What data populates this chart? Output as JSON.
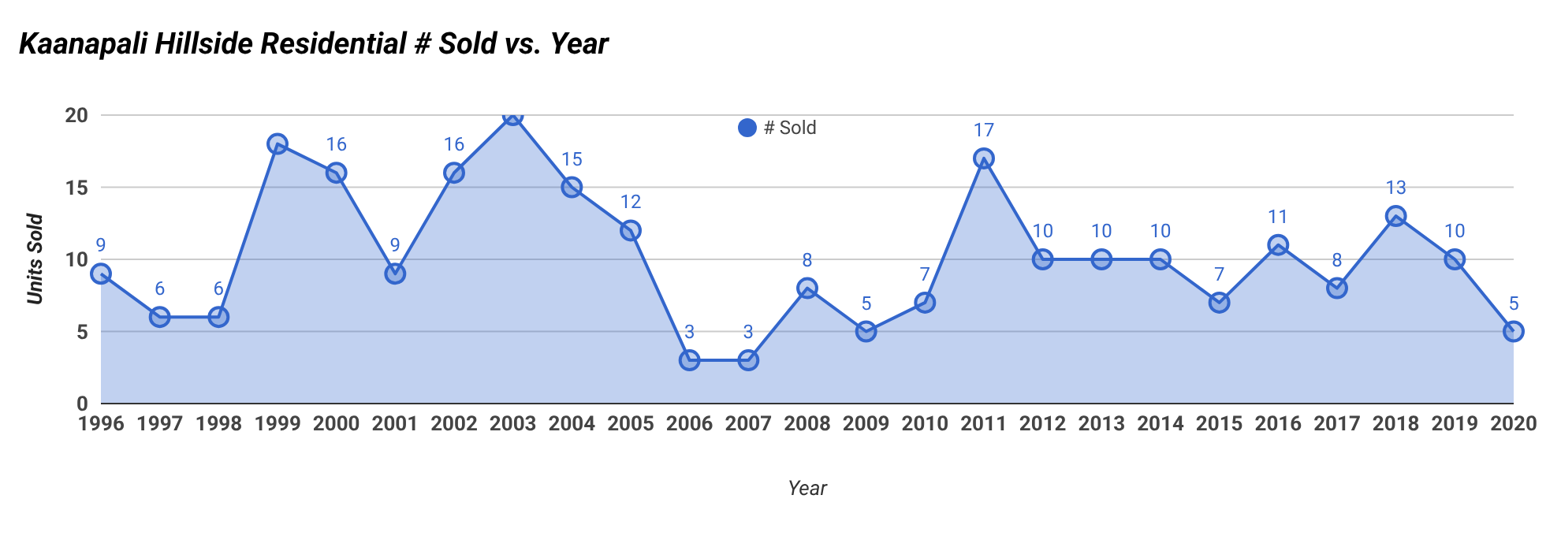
{
  "chart_data": {
    "type": "area",
    "title": "Kaanapali Hillside Residential # Sold vs. Year",
    "xlabel": "Year",
    "ylabel": "Units Sold",
    "categories": [
      "1996",
      "1997",
      "1998",
      "1999",
      "2000",
      "2001",
      "2002",
      "2003",
      "2004",
      "2005",
      "2006",
      "2007",
      "2008",
      "2009",
      "2010",
      "2011",
      "2012",
      "2013",
      "2014",
      "2015",
      "2016",
      "2017",
      "2018",
      "2019",
      "2020"
    ],
    "series": [
      {
        "name": "# Sold",
        "color": "#3366cc",
        "values": [
          9,
          6,
          6,
          18,
          16,
          9,
          16,
          20,
          15,
          12,
          3,
          3,
          8,
          5,
          7,
          17,
          10,
          10,
          10,
          7,
          11,
          8,
          13,
          10,
          5
        ],
        "value_labels": [
          "9",
          "6",
          "6",
          null,
          "16",
          "9",
          "16",
          null,
          "15",
          "12",
          "3",
          "3",
          "8",
          "5",
          "7",
          "17",
          "10",
          "10",
          "10",
          "7",
          "11",
          "8",
          "13",
          "10",
          "5"
        ]
      }
    ],
    "ylim": [
      0,
      20
    ],
    "yticks": [
      0,
      5,
      10,
      15,
      20
    ],
    "grid": "y",
    "legend": "top",
    "marker": "circle",
    "line_style": "solid"
  }
}
